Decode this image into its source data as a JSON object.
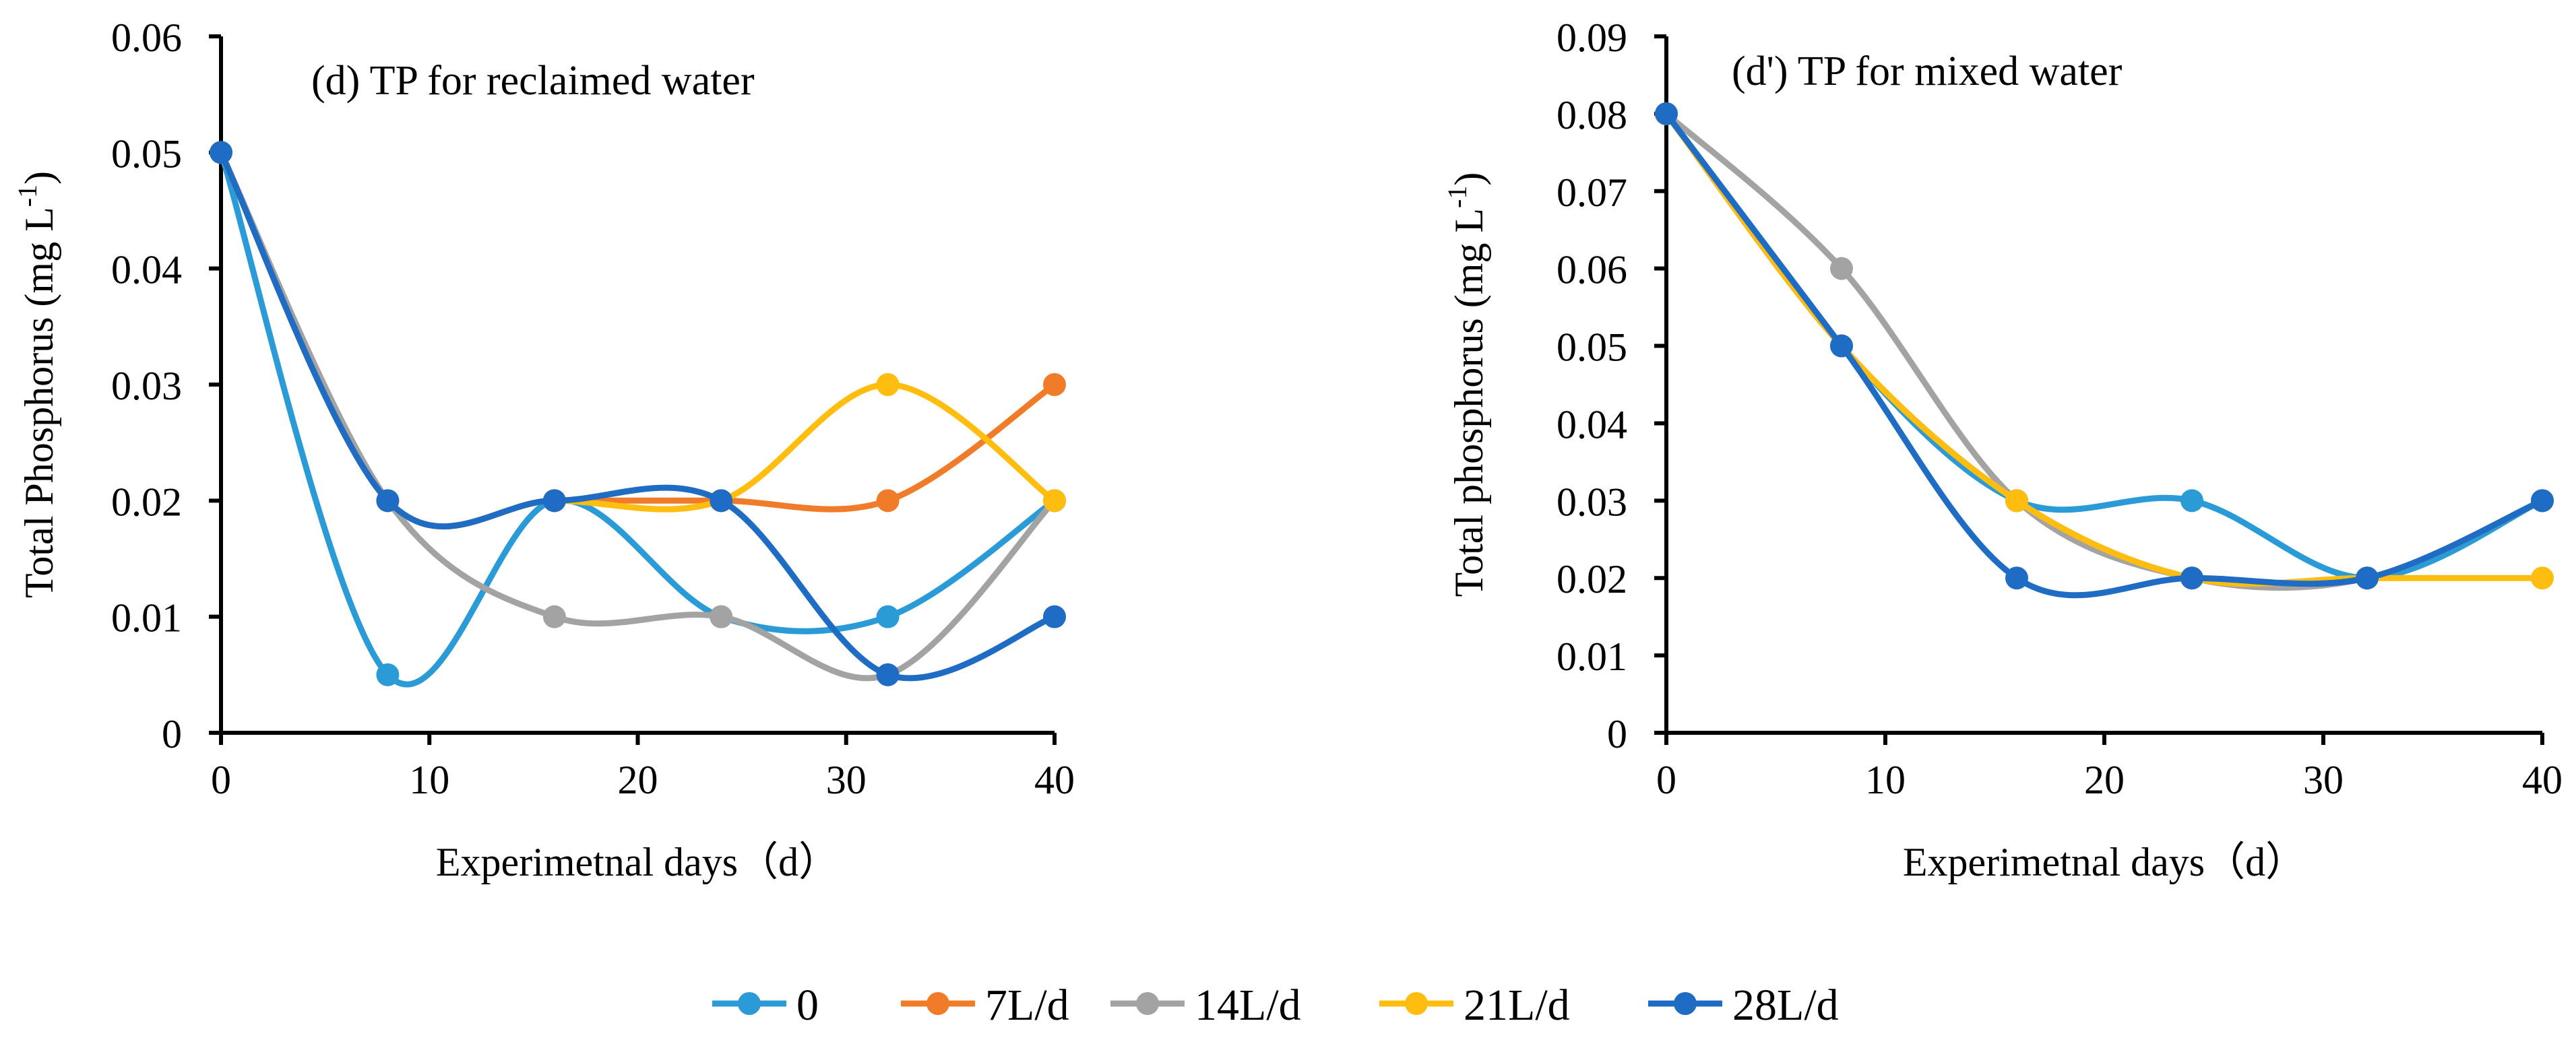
{
  "chart_data": [
    {
      "type": "line",
      "title": "(d) TP for reclaimed water",
      "xlabel": "Experimetnal days（d）",
      "ylabel": "Total Phosphorus (mg L-1)",
      "ylabel_main": "Total Phosphorus (mg L",
      "ylabel_sup": "-1",
      "ylabel_close": ")",
      "xlim": [
        0,
        40
      ],
      "ylim": [
        0,
        0.06
      ],
      "x_ticks": [
        "0",
        "10",
        "20",
        "30",
        "40"
      ],
      "y_ticks": [
        "0",
        "0.01",
        "0.02",
        "0.03",
        "0.04",
        "0.05",
        "0.06"
      ],
      "x": [
        0,
        8,
        16,
        24,
        32,
        40
      ],
      "smooth": true,
      "series": [
        {
          "name": "0",
          "values": [
            0.05,
            0.005,
            0.02,
            0.01,
            0.01,
            0.02
          ]
        },
        {
          "name": "7L/d",
          "values": [
            0.05,
            0.02,
            0.02,
            0.02,
            0.02,
            0.03
          ]
        },
        {
          "name": "14L/d",
          "values": [
            0.05,
            0.02,
            0.01,
            0.01,
            0.005,
            0.02
          ]
        },
        {
          "name": "21L/d",
          "values": [
            0.05,
            0.02,
            0.02,
            0.02,
            0.03,
            0.02
          ]
        },
        {
          "name": "28L/d",
          "values": [
            0.05,
            0.02,
            0.02,
            0.02,
            0.005,
            0.01
          ]
        }
      ]
    },
    {
      "type": "line",
      "title": "(d') TP for mixed water",
      "xlabel": "Experimetnal days（d）",
      "ylabel": "Total phosphorus (mg L-1)",
      "ylabel_main": "Total phosphorus (mg L",
      "ylabel_sup": "-1",
      "ylabel_close": ")",
      "xlim": [
        0,
        40
      ],
      "ylim": [
        0,
        0.09
      ],
      "x_ticks": [
        "0",
        "10",
        "20",
        "30",
        "40"
      ],
      "y_ticks": [
        "0",
        "0.01",
        "0.02",
        "0.03",
        "0.04",
        "0.05",
        "0.06",
        "0.07",
        "0.08",
        "0.09"
      ],
      "x": [
        0,
        8,
        16,
        24,
        32,
        40
      ],
      "smooth": true,
      "series": [
        {
          "name": "0",
          "values": [
            0.08,
            0.05,
            0.03,
            0.03,
            0.02,
            0.03
          ]
        },
        {
          "name": "7L/d",
          "values": [
            0.08,
            0.05,
            0.03,
            0.02,
            0.02,
            0.03
          ]
        },
        {
          "name": "14L/d",
          "values": [
            0.08,
            0.06,
            0.03,
            0.02,
            0.02,
            0.03
          ]
        },
        {
          "name": "21L/d",
          "values": [
            0.08,
            0.05,
            0.03,
            0.02,
            0.02,
            0.02
          ]
        },
        {
          "name": "28L/d",
          "values": [
            0.08,
            0.05,
            0.02,
            0.02,
            0.02,
            0.03
          ]
        }
      ]
    }
  ],
  "legend": {
    "position": "bottom-center",
    "items": [
      "0",
      "7L/d",
      "14L/d",
      "21L/d",
      "28L/d"
    ]
  },
  "colors": {
    "0": "#2A9BD6",
    "7L/d": "#F07C2A",
    "14L/d": "#A3A3A3",
    "21L/d": "#FFBE0F",
    "28L/d": "#1E6CC4",
    "axis": "#000000"
  }
}
